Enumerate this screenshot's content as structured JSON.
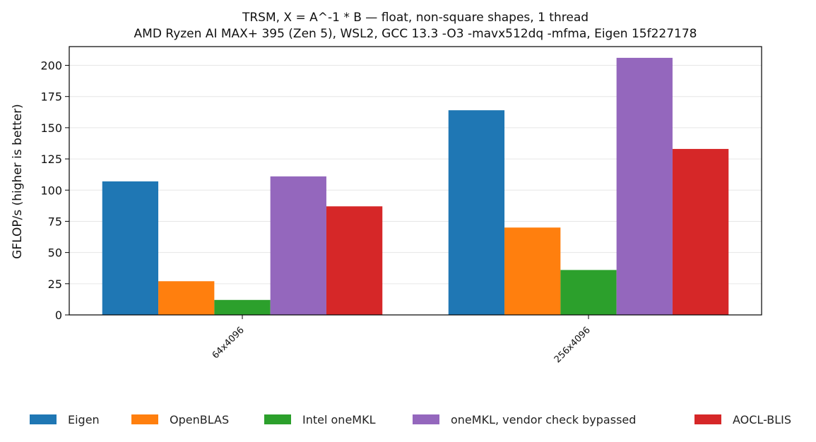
{
  "chart_data": {
    "type": "bar",
    "title": "TRSM, X = A^-1 * B — float, non-square shapes, 1 thread",
    "subtitle": "AMD Ryzen AI MAX+ 395 (Zen 5), WSL2, GCC 13.3 -O3 -mavx512dq -mfma, Eigen 15f227178",
    "xlabel": "",
    "ylabel": "GFLOP/s (higher is better)",
    "ylim": [
      0,
      215
    ],
    "yticks": [
      0,
      25,
      50,
      75,
      100,
      125,
      150,
      175,
      200
    ],
    "grid": "y",
    "legend_position": "bottom",
    "categories": [
      "64x4096",
      "256x4096"
    ],
    "series": [
      {
        "name": "Eigen",
        "color": "#1f77b4",
        "values": [
          107,
          164
        ]
      },
      {
        "name": "OpenBLAS",
        "color": "#ff7f0e",
        "values": [
          27,
          70
        ]
      },
      {
        "name": "Intel oneMKL",
        "color": "#2ca02c",
        "values": [
          12,
          36
        ]
      },
      {
        "name": "oneMKL, vendor check bypassed",
        "color": "#9467bd",
        "values": [
          111,
          206
        ]
      },
      {
        "name": "AOCL-BLIS",
        "color": "#d62728",
        "values": [
          87,
          133
        ]
      }
    ]
  }
}
